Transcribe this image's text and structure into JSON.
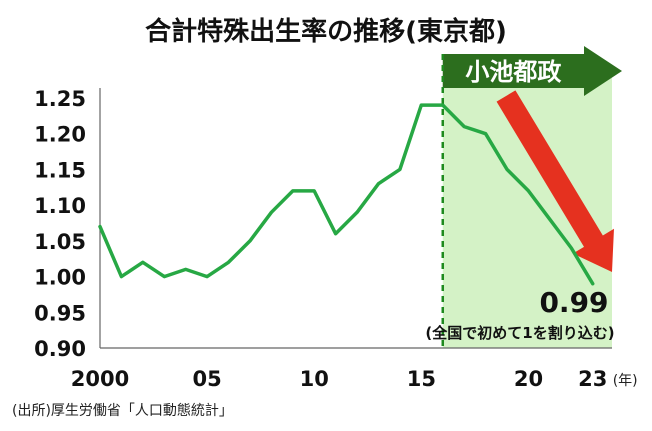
{
  "chart_data": {
    "type": "line",
    "title": "合計特殊出生率の推移(東京都)",
    "x": [
      2000,
      2001,
      2002,
      2003,
      2004,
      2005,
      2006,
      2007,
      2008,
      2009,
      2010,
      2011,
      2012,
      2013,
      2014,
      2015,
      2016,
      2017,
      2018,
      2019,
      2020,
      2021,
      2022,
      2023
    ],
    "series": [
      {
        "values": [
          1.07,
          1.0,
          1.02,
          1.0,
          1.01,
          1.0,
          1.02,
          1.05,
          1.09,
          1.12,
          1.12,
          1.06,
          1.09,
          1.13,
          1.15,
          1.24,
          1.24,
          1.21,
          1.2,
          1.15,
          1.12,
          1.08,
          1.04,
          0.99
        ]
      }
    ],
    "ylim": [
      0.9,
      1.25
    ],
    "yticks": [
      "1.25",
      "1.20",
      "1.15",
      "1.10",
      "1.05",
      "1.00",
      "0.95",
      "0.90"
    ],
    "xticks": [
      {
        "x": 2000,
        "label": "2000"
      },
      {
        "x": 2005,
        "label": "05"
      },
      {
        "x": 2010,
        "label": "10"
      },
      {
        "x": 2015,
        "label": "15"
      },
      {
        "x": 2020,
        "label": "20"
      },
      {
        "x": 2023,
        "label": "23"
      }
    ],
    "x_unit": "(年)",
    "highlight": {
      "from": 2016,
      "label": "小池都政"
    },
    "annotation": {
      "value_label": "0.99",
      "note": "(全国で初めて1を割り込む)"
    },
    "colors": {
      "line": "#27a844",
      "shade": "#d4f2c6",
      "banner": "#2c6e1e",
      "arrow": "#e5311f",
      "divider": "#1e8a1e"
    },
    "grid": false
  },
  "source": "(出所)厚生労働省「人口動態統計」"
}
